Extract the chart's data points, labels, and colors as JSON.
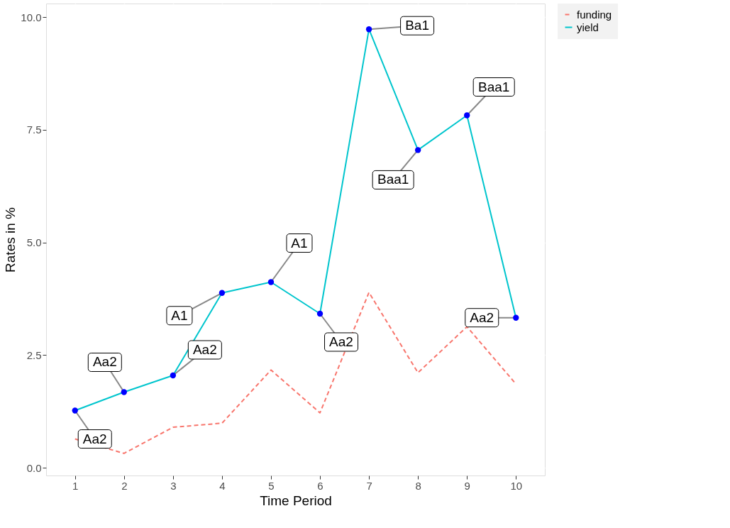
{
  "chart_data": {
    "type": "line",
    "xlabel": "Time Period",
    "ylabel": "Rates in %",
    "x": [
      1,
      2,
      3,
      4,
      5,
      6,
      7,
      8,
      9,
      10
    ],
    "series": [
      {
        "name": "funding",
        "color": "#f8766d",
        "line_style": "dashed",
        "marker": "none",
        "values": [
          0.64,
          0.32,
          0.9,
          0.99,
          2.17,
          1.22,
          3.89,
          2.11,
          3.13,
          1.86
        ]
      },
      {
        "name": "yield",
        "color": "#00c5cd",
        "line_style": "solid",
        "marker": "circle",
        "colors": [
          "#0000ff",
          "#0000ff",
          "#0000ff",
          "#0000ff",
          "#0000ff",
          "#0000ff",
          "#0000ff",
          "#0000ff",
          "#0000ff",
          "#0000ff"
        ],
        "values": [
          1.27,
          1.68,
          2.05,
          3.88,
          4.12,
          3.42,
          9.73,
          7.05,
          7.82,
          3.33
        ]
      }
    ],
    "annotations": [
      {
        "text": "Aa2",
        "x": 1,
        "y": 1.27
      },
      {
        "text": "Aa2",
        "x": 2,
        "y": 1.68
      },
      {
        "text": "Aa2",
        "x": 3,
        "y": 2.05
      },
      {
        "text": "A1",
        "x": 4,
        "y": 3.88
      },
      {
        "text": "A1",
        "x": 5,
        "y": 4.12
      },
      {
        "text": "Aa2",
        "x": 6,
        "y": 3.42
      },
      {
        "text": "Ba1",
        "x": 7,
        "y": 9.73
      },
      {
        "text": "Baa1",
        "x": 8,
        "y": 7.05
      },
      {
        "text": "Baa1",
        "x": 9,
        "y": 7.82
      },
      {
        "text": "Aa2",
        "x": 10,
        "y": 3.33
      }
    ],
    "xlim": [
      0.41,
      10.59
    ],
    "xticks": [
      1,
      2,
      3,
      4,
      5,
      6,
      7,
      8,
      9,
      10
    ],
    "ylim": [
      -0.17,
      10.3
    ],
    "yticks": [
      {
        "value": 0,
        "label": "0.0"
      },
      2.5,
      {
        "value": 5,
        "label": "5.0"
      },
      7.5,
      {
        "value": 10,
        "label": "10.0"
      }
    ],
    "grid": true,
    "legend": "right"
  }
}
